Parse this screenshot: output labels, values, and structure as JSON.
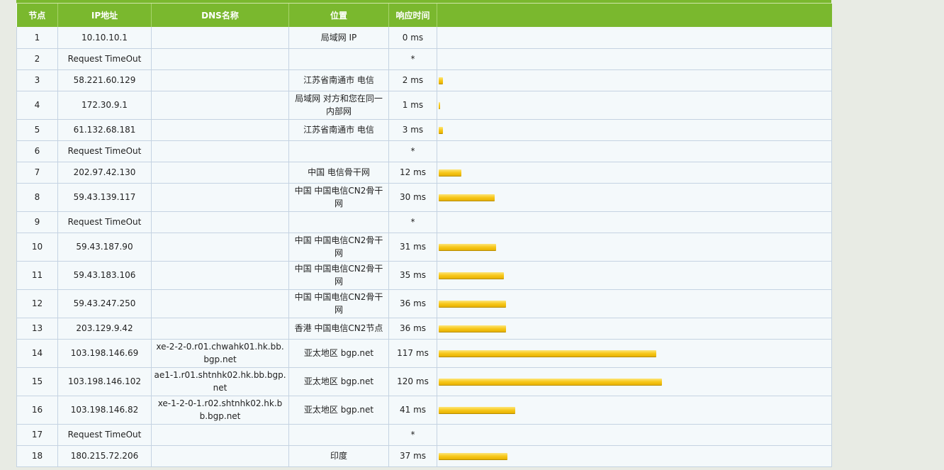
{
  "headers": [
    "节点",
    "IP地址",
    "DNS名称",
    "位置",
    "响应时间",
    ""
  ],
  "max_ms": 120,
  "rows": [
    {
      "hop": "1",
      "ip": "10.10.10.1",
      "dns": "",
      "location": "局域网 IP",
      "time": "0 ms",
      "ms": 0
    },
    {
      "hop": "2",
      "ip": "Request TimeOut",
      "dns": "",
      "location": "",
      "time": "*",
      "ms": null
    },
    {
      "hop": "3",
      "ip": "58.221.60.129",
      "dns": "",
      "location": "江苏省南通市 电信",
      "time": "2 ms",
      "ms": 2
    },
    {
      "hop": "4",
      "ip": "172.30.9.1",
      "dns": "",
      "location": "局域网 对方和您在同一内部网",
      "time": "1 ms",
      "ms": 1
    },
    {
      "hop": "5",
      "ip": "61.132.68.181",
      "dns": "",
      "location": "江苏省南通市 电信",
      "time": "3 ms",
      "ms": 3
    },
    {
      "hop": "6",
      "ip": "Request TimeOut",
      "dns": "",
      "location": "",
      "time": "*",
      "ms": null
    },
    {
      "hop": "7",
      "ip": "202.97.42.130",
      "dns": "",
      "location": "中国 电信骨干网",
      "time": "12 ms",
      "ms": 12
    },
    {
      "hop": "8",
      "ip": "59.43.139.117",
      "dns": "",
      "location": "中国 中国电信CN2骨干网",
      "time": "30 ms",
      "ms": 30
    },
    {
      "hop": "9",
      "ip": "Request TimeOut",
      "dns": "",
      "location": "",
      "time": "*",
      "ms": null
    },
    {
      "hop": "10",
      "ip": "59.43.187.90",
      "dns": "",
      "location": "中国 中国电信CN2骨干网",
      "time": "31 ms",
      "ms": 31
    },
    {
      "hop": "11",
      "ip": "59.43.183.106",
      "dns": "",
      "location": "中国 中国电信CN2骨干网",
      "time": "35 ms",
      "ms": 35
    },
    {
      "hop": "12",
      "ip": "59.43.247.250",
      "dns": "",
      "location": "中国 中国电信CN2骨干网",
      "time": "36 ms",
      "ms": 36
    },
    {
      "hop": "13",
      "ip": "203.129.9.42",
      "dns": "",
      "location": "香港 中国电信CN2节点",
      "time": "36 ms",
      "ms": 36
    },
    {
      "hop": "14",
      "ip": "103.198.146.69",
      "dns": "xe-2-2-0.r01.chwahk01.hk.bb.bgp.net",
      "location": "亚太地区 bgp.net",
      "time": "117 ms",
      "ms": 117
    },
    {
      "hop": "15",
      "ip": "103.198.146.102",
      "dns": "ae1-1.r01.shtnhk02.hk.bb.bgp.net",
      "location": "亚太地区 bgp.net",
      "time": "120 ms",
      "ms": 120
    },
    {
      "hop": "16",
      "ip": "103.198.146.82",
      "dns": "xe-1-2-0-1.r02.shtnhk02.hk.bb.bgp.net",
      "location": "亚太地区 bgp.net",
      "time": "41 ms",
      "ms": 41
    },
    {
      "hop": "17",
      "ip": "Request TimeOut",
      "dns": "",
      "location": "",
      "time": "*",
      "ms": null
    },
    {
      "hop": "18",
      "ip": "180.215.72.206",
      "dns": "",
      "location": "印度",
      "time": "37 ms",
      "ms": 37
    }
  ]
}
